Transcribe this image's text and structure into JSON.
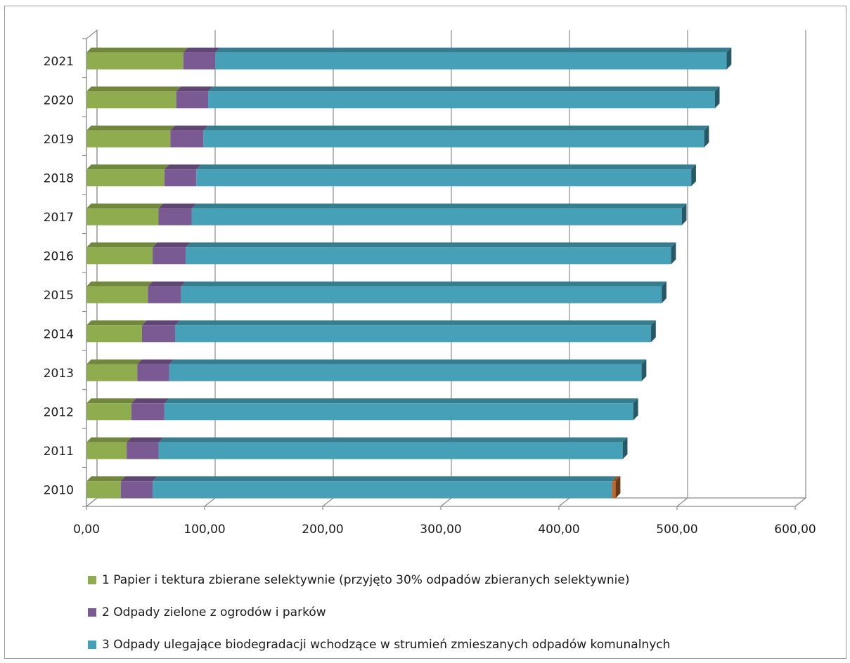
{
  "chart_data": {
    "type": "bar",
    "orientation": "horizontal",
    "stacked": true,
    "three_d": true,
    "categories": [
      "2010",
      "2011",
      "2012",
      "2013",
      "2014",
      "2015",
      "2016",
      "2017",
      "2018",
      "2019",
      "2020",
      "2021"
    ],
    "series": [
      {
        "name": "1 Papier i tektura zbierane selektywnie  (przyjęto 30% odpadów zbieranych selektywnie)",
        "color": "#8fad4e",
        "values": [
          29,
          34,
          38,
          43,
          47,
          52,
          56,
          61,
          66,
          71,
          76,
          82
        ]
      },
      {
        "name": "2 Odpady zielone z ogrodów i parków",
        "color": "#7b5a94",
        "values": [
          27,
          27,
          28,
          27,
          28,
          28,
          28,
          28,
          27,
          28,
          27,
          27
        ]
      },
      {
        "name": "3 Odpady ulegające biodegradacji wchodzące w strumień zmieszanych odpadów komunalnych",
        "color": "#46a0b8",
        "values": [
          389,
          393,
          397,
          400,
          403,
          407,
          411,
          415,
          419,
          424,
          429,
          433
        ]
      },
      {
        "name": "",
        "color": "#c0662a",
        "values": [
          3,
          0,
          0,
          0,
          0,
          0,
          0,
          0,
          0,
          0,
          0,
          0
        ]
      }
    ],
    "xlim": [
      0,
      600
    ],
    "x_ticks": [
      "0,00",
      "100,00",
      "200,00",
      "300,00",
      "400,00",
      "500,00",
      "600,00"
    ],
    "grid": true,
    "legend_position": "bottom"
  }
}
